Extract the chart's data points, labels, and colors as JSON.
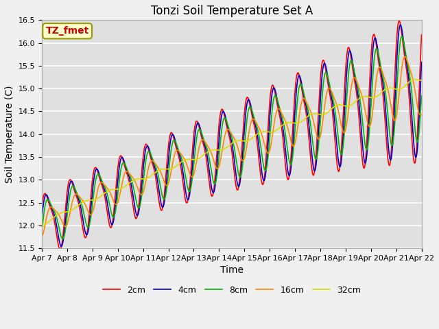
{
  "title": "Tonzi Soil Temperature Set A",
  "xlabel": "Time",
  "ylabel": "Soil Temperature (C)",
  "label_text": "TZ_fmet",
  "ylim": [
    11.5,
    16.5
  ],
  "x_tick_labels": [
    "Apr 7",
    "Apr 8",
    "Apr 9",
    "Apr 10",
    "Apr 11",
    "Apr 12",
    "Apr 13",
    "Apr 14",
    "Apr 15",
    "Apr 16",
    "Apr 17",
    "Apr 18",
    "Apr 19",
    "Apr 20",
    "Apr 21",
    "Apr 22"
  ],
  "series_colors": [
    "#ff0000",
    "#0000cc",
    "#00bb00",
    "#ff8800",
    "#dddd00"
  ],
  "series_labels": [
    "2cm",
    "4cm",
    "8cm",
    "16cm",
    "32cm"
  ],
  "bg_color": "#e0e0e0",
  "fig_color": "#f0f0f0",
  "grid_color": "#ffffff",
  "title_fontsize": 12,
  "axis_fontsize": 10,
  "tick_fontsize": 8,
  "legend_fontsize": 9,
  "linewidth": 1.2
}
